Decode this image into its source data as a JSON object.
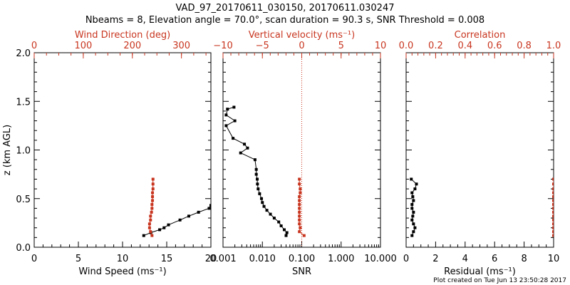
{
  "title_line1": "VAD_97_20170611_030150, 20170611.030247",
  "title_line2": "Nbeams = 8, Elevation angle = 70.0°, scan duration = 90.3 s, SNR Threshold = 0.008",
  "footer": "Plot created on Tue Jun 13 23:50:28 2017",
  "colors": {
    "axis": "#000000",
    "red": "#c8351f"
  },
  "chart_data": [
    {
      "type": "line",
      "panel": "wind",
      "ylabel": "z (km AGL)",
      "ylim": [
        0,
        2.0
      ],
      "y_ticks": [
        0.0,
        0.5,
        1.0,
        1.5,
        2.0
      ],
      "y_tick_labels": [
        "0.0",
        "0.5",
        "1.0",
        "1.5",
        "2.0"
      ],
      "bottom_axis": {
        "label": "Wind Speed (ms⁻¹)",
        "range": [
          0,
          20
        ],
        "ticks": [
          0,
          5,
          10,
          15,
          20
        ],
        "tick_labels": [
          "0",
          "5",
          "10",
          "15",
          "20"
        ]
      },
      "top_axis": {
        "label": "Wind Direction (deg)",
        "range": [
          0,
          360
        ],
        "ticks": [
          0,
          100,
          200,
          300
        ],
        "tick_labels": [
          "0",
          "100",
          "200",
          "300"
        ]
      },
      "series": [
        {
          "axis": "bottom",
          "color": "#000000",
          "x": [
            12.4,
            13.2,
            14.2,
            14.7,
            15.2,
            16.5,
            17.5,
            18.6,
            19.8,
            20.0
          ],
          "y": [
            0.12,
            0.15,
            0.18,
            0.2,
            0.23,
            0.28,
            0.32,
            0.36,
            0.4,
            0.43
          ]
        },
        {
          "axis": "top",
          "color": "#c8351f",
          "x": [
            240,
            237,
            235,
            235,
            237,
            237,
            239,
            240,
            240,
            241,
            241,
            241,
            242,
            242,
            242
          ],
          "y": [
            0.12,
            0.16,
            0.2,
            0.24,
            0.28,
            0.32,
            0.36,
            0.4,
            0.44,
            0.48,
            0.52,
            0.56,
            0.6,
            0.65,
            0.7
          ]
        }
      ]
    },
    {
      "type": "line",
      "panel": "snr",
      "bottom_axis": {
        "label": "SNR",
        "scale": "log",
        "range": [
          0.001,
          10
        ],
        "ticks": [
          0.001,
          0.01,
          0.1,
          1,
          10
        ],
        "tick_labels": [
          "0.001",
          "0.010",
          "0.100",
          "1.000",
          "10.000"
        ]
      },
      "top_axis": {
        "label": "Vertical velocity (ms⁻¹)",
        "range": [
          -10,
          10
        ],
        "ticks": [
          -10,
          -5,
          0,
          5,
          10
        ],
        "tick_labels": [
          "−10",
          "−5",
          "0",
          "5",
          "10"
        ]
      },
      "series": [
        {
          "axis": "bottom",
          "color": "#000000",
          "x": [
            0.04,
            0.042,
            0.036,
            0.03,
            0.026,
            0.02,
            0.016,
            0.013,
            0.011,
            0.01,
            0.0095,
            0.0085,
            0.0078,
            0.0075,
            0.0074,
            0.007,
            0.007,
            0.0065,
            0.0028,
            0.0042,
            0.0035,
            0.0018,
            0.0012,
            0.002,
            0.0012,
            0.0013,
            0.0019
          ],
          "y": [
            0.12,
            0.15,
            0.18,
            0.22,
            0.26,
            0.3,
            0.34,
            0.38,
            0.42,
            0.46,
            0.5,
            0.55,
            0.6,
            0.65,
            0.7,
            0.75,
            0.8,
            0.9,
            0.97,
            1.02,
            1.06,
            1.12,
            1.25,
            1.3,
            1.36,
            1.42,
            1.44
          ]
        },
        {
          "axis": "top",
          "color": "#c8351f",
          "x": [
            0.3,
            -0.3,
            -0.2,
            -0.3,
            -0.3,
            -0.3,
            -0.3,
            -0.3,
            -0.3,
            -0.3,
            -0.3,
            -0.2,
            -0.2,
            -0.3,
            -0.3
          ],
          "y": [
            0.12,
            0.16,
            0.2,
            0.24,
            0.28,
            0.32,
            0.36,
            0.4,
            0.44,
            0.48,
            0.52,
            0.56,
            0.6,
            0.65,
            0.7
          ]
        }
      ],
      "reference_line": {
        "axis": "top",
        "x": 0,
        "style": "dotted",
        "color": "#c8351f"
      }
    },
    {
      "type": "line",
      "panel": "residual",
      "bottom_axis": {
        "label": "Residual (ms⁻¹)",
        "range": [
          0,
          10
        ],
        "ticks": [
          0,
          2,
          4,
          6,
          8,
          10
        ],
        "tick_labels": [
          "0",
          "2",
          "4",
          "6",
          "8",
          "10"
        ]
      },
      "top_axis": {
        "label": "Correlation",
        "range": [
          0.0,
          1.0
        ],
        "ticks": [
          0.0,
          0.2,
          0.4,
          0.6,
          0.8,
          1.0
        ],
        "tick_labels": [
          "0.0",
          "0.2",
          "0.4",
          "0.6",
          "0.8",
          "1.0"
        ]
      },
      "series": [
        {
          "axis": "bottom",
          "color": "#000000",
          "x": [
            0.4,
            0.5,
            0.6,
            0.5,
            0.4,
            0.45,
            0.5,
            0.4,
            0.4,
            0.5,
            0.45,
            0.4,
            0.6,
            0.7,
            0.35
          ],
          "y": [
            0.12,
            0.16,
            0.2,
            0.24,
            0.28,
            0.32,
            0.36,
            0.4,
            0.44,
            0.48,
            0.52,
            0.56,
            0.6,
            0.65,
            0.7
          ]
        },
        {
          "axis": "top",
          "color": "#c8351f",
          "x": [
            1.0,
            1.0,
            1.0,
            1.0,
            1.0,
            1.0,
            1.0,
            1.0,
            1.0,
            1.0,
            1.0,
            1.0,
            1.0,
            1.0,
            1.0
          ],
          "y": [
            0.12,
            0.16,
            0.2,
            0.24,
            0.28,
            0.32,
            0.36,
            0.4,
            0.44,
            0.48,
            0.52,
            0.56,
            0.6,
            0.65,
            0.7
          ]
        }
      ]
    }
  ]
}
